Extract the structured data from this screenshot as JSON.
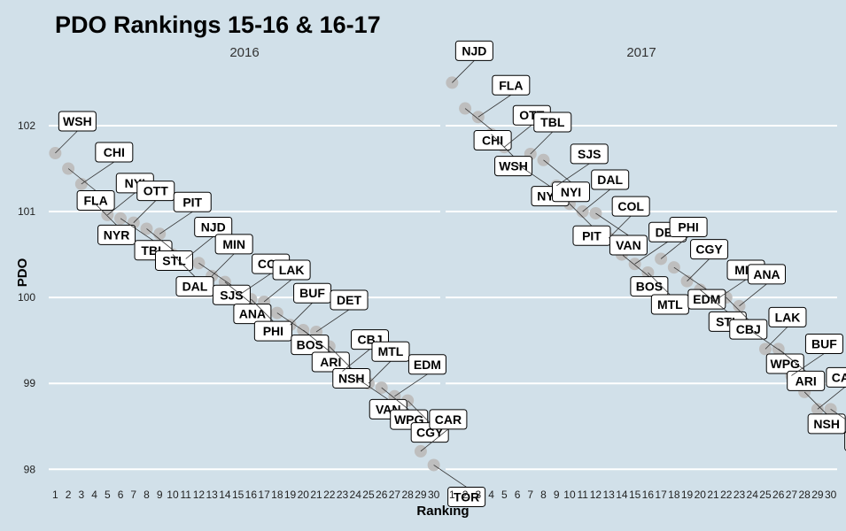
{
  "chart_data": {
    "type": "scatter",
    "title": "PDO Rankings 15-16 & 16-17",
    "xlabel": "Ranking",
    "ylabel": "PDO",
    "ylim": [
      97.9,
      102.7
    ],
    "xlim": [
      0.5,
      30.5
    ],
    "yticks": [
      98,
      99,
      100,
      101,
      102
    ],
    "xticks": [
      1,
      2,
      3,
      4,
      5,
      6,
      7,
      8,
      9,
      10,
      11,
      12,
      13,
      14,
      15,
      16,
      17,
      18,
      19,
      20,
      21,
      22,
      23,
      24,
      25,
      26,
      27,
      28,
      29,
      30
    ],
    "grid": "horizontal major lines",
    "point_color": "#bebebe",
    "panels": [
      {
        "label": "2016",
        "points": [
          {
            "team": "WSH",
            "x": 1,
            "y": 101.68
          },
          {
            "team": "FLA",
            "x": 2,
            "y": 101.5
          },
          {
            "team": "CHI",
            "x": 3,
            "y": 101.32
          },
          {
            "team": "NYR",
            "x": 4,
            "y": 101.1
          },
          {
            "team": "NYI",
            "x": 5,
            "y": 100.96
          },
          {
            "team": "TBL",
            "x": 6,
            "y": 100.92
          },
          {
            "team": "OTT",
            "x": 7,
            "y": 100.87
          },
          {
            "team": "STL",
            "x": 8,
            "y": 100.8
          },
          {
            "team": "PIT",
            "x": 9,
            "y": 100.74
          },
          {
            "team": "DAL",
            "x": 10,
            "y": 100.5
          },
          {
            "team": "NJD",
            "x": 11,
            "y": 100.45
          },
          {
            "team": "SJS",
            "x": 12,
            "y": 100.4
          },
          {
            "team": "MIN",
            "x": 13,
            "y": 100.25
          },
          {
            "team": "ANA",
            "x": 14,
            "y": 100.18
          },
          {
            "team": "COL",
            "x": 15,
            "y": 100.02
          },
          {
            "team": "PHI",
            "x": 16,
            "y": 99.98
          },
          {
            "team": "LAK",
            "x": 17,
            "y": 99.95
          },
          {
            "team": "BOS",
            "x": 18,
            "y": 99.82
          },
          {
            "team": "BUF",
            "x": 19,
            "y": 99.68
          },
          {
            "team": "ARI",
            "x": 20,
            "y": 99.62
          },
          {
            "team": "DET",
            "x": 21,
            "y": 99.6
          },
          {
            "team": "NSH",
            "x": 22,
            "y": 99.43
          },
          {
            "team": "CBJ",
            "x": 23,
            "y": 99.14
          },
          {
            "team": "VAN",
            "x": 24,
            "y": 99.07
          },
          {
            "team": "MTL",
            "x": 25,
            "y": 99.0
          },
          {
            "team": "WPG",
            "x": 26,
            "y": 98.95
          },
          {
            "team": "EDM",
            "x": 27,
            "y": 98.85
          },
          {
            "team": "CGY",
            "x": 28,
            "y": 98.8
          },
          {
            "team": "CAR",
            "x": 29,
            "y": 98.21
          },
          {
            "team": "TOR",
            "x": 30,
            "y": 98.05
          }
        ]
      },
      {
        "label": "2017",
        "points": [
          {
            "team": "NJD",
            "x": 1,
            "y": 102.5
          },
          {
            "team": "CHI",
            "x": 2,
            "y": 102.2
          },
          {
            "team": "FLA",
            "x": 3,
            "y": 102.1
          },
          {
            "team": "WSH",
            "x": 4,
            "y": 101.9
          },
          {
            "team": "OTT",
            "x": 5,
            "y": 101.75
          },
          {
            "team": "NYR",
            "x": 6,
            "y": 101.55
          },
          {
            "team": "TBL",
            "x": 7,
            "y": 101.67
          },
          {
            "team": "NYI",
            "x": 8,
            "y": 101.6
          },
          {
            "team": "SJS",
            "x": 9,
            "y": 101.3
          },
          {
            "team": "PIT",
            "x": 10,
            "y": 101.09
          },
          {
            "team": "DAL",
            "x": 11,
            "y": 101.0
          },
          {
            "team": "VAN",
            "x": 12,
            "y": 100.98
          },
          {
            "team": "COL",
            "x": 13,
            "y": 100.69
          },
          {
            "team": "BOS",
            "x": 14,
            "y": 100.5
          },
          {
            "team": "DET",
            "x": 15,
            "y": 100.39
          },
          {
            "team": "MTL",
            "x": 16,
            "y": 100.29
          },
          {
            "team": "PHI",
            "x": 17,
            "y": 100.45
          },
          {
            "team": "EDM",
            "x": 18,
            "y": 100.35
          },
          {
            "team": "CGY",
            "x": 19,
            "y": 100.19
          },
          {
            "team": "STL",
            "x": 20,
            "y": 100.09
          },
          {
            "team": "MIN",
            "x": 21,
            "y": 99.95
          },
          {
            "team": "CBJ",
            "x": 22,
            "y": 100.0
          },
          {
            "team": "ANA",
            "x": 23,
            "y": 99.9
          },
          {
            "team": "WPG",
            "x": 24,
            "y": 99.6
          },
          {
            "team": "LAK",
            "x": 25,
            "y": 99.4
          },
          {
            "team": "ARI",
            "x": 26,
            "y": 99.4
          },
          {
            "team": "BUF",
            "x": 27,
            "y": 99.09
          },
          {
            "team": "NSH",
            "x": 28,
            "y": 98.9
          },
          {
            "team": "CAR",
            "x": 29,
            "y": 98.7
          },
          {
            "team": "TOR",
            "x": 30,
            "y": 98.7
          }
        ]
      }
    ]
  }
}
